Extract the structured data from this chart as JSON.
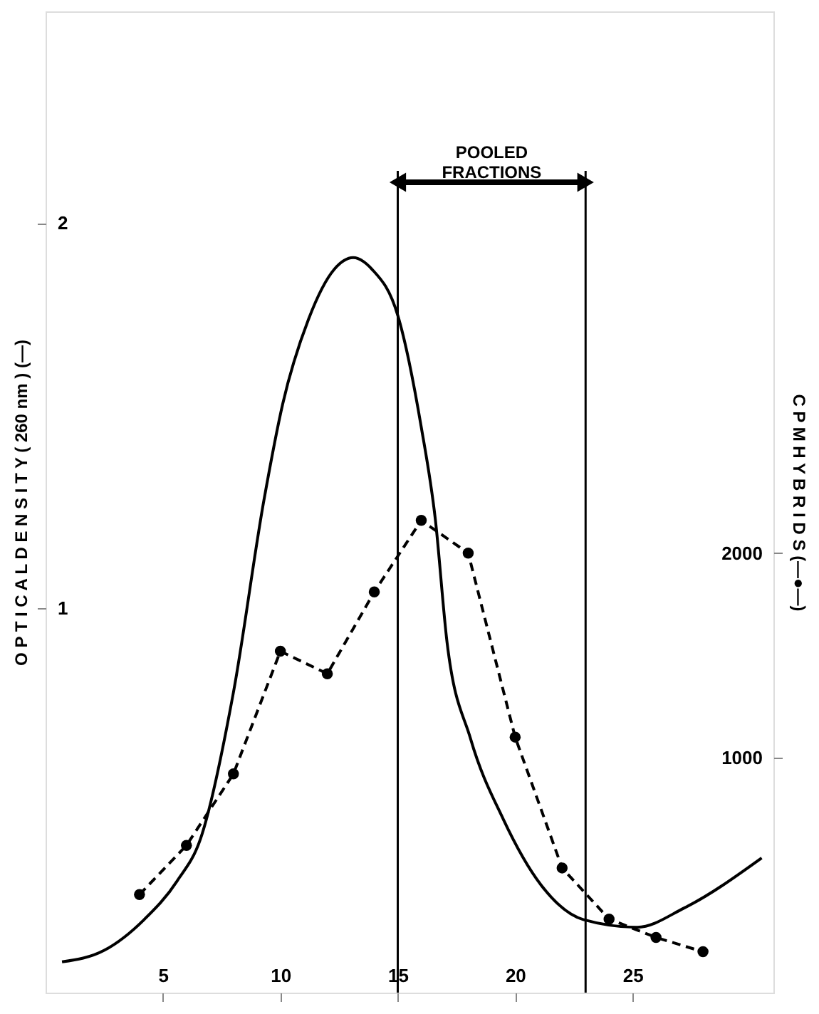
{
  "chart_data": {
    "type": "line",
    "ylabel": "O P T I C A L   D E N S I T Y   ( 260 nm )  (—)",
    "y2label": "C P M   H Y B R I D S   (—●—)",
    "xlim": [
      0,
      31
    ],
    "xticks": [
      5,
      10,
      15,
      20,
      25
    ],
    "ylim": [
      0,
      2.55
    ],
    "yticks": [
      1,
      2
    ],
    "y2lim": [
      -150,
      4650
    ],
    "y2ticks": [
      1000,
      2000
    ],
    "series": [
      {
        "color": "#000000",
        "marker": "none",
        "line_style": "solid",
        "x": [
          0.7,
          2.5,
          4.2,
          5.6,
          6.6,
          8.0,
          9.3,
          10.1,
          11.2,
          12.3,
          13.1,
          13.9,
          15.0,
          16.0,
          16.6,
          17.1,
          18.1,
          19.5,
          21.1,
          22.9,
          25.2,
          27.2,
          30.5
        ],
        "values": [
          0.08,
          0.11,
          0.19,
          0.29,
          0.4,
          0.78,
          1.28,
          1.53,
          1.75,
          1.88,
          1.91,
          1.88,
          1.76,
          1.47,
          1.23,
          0.91,
          0.66,
          0.45,
          0.28,
          0.19,
          0.17,
          0.22,
          0.35
        ]
      },
      {
        "axis": "y2",
        "color": "#000000",
        "marker": "circle",
        "line_style": "dashed",
        "x": [
          4,
          6,
          8,
          10,
          12,
          14,
          16,
          18,
          20,
          22,
          24,
          26,
          28
        ],
        "values": [
          330,
          570,
          920,
          1520,
          1410,
          1810,
          2160,
          2000,
          1100,
          460,
          210,
          120,
          50
        ]
      }
    ],
    "ref_lines": [
      {
        "axis": "x",
        "value": 15
      },
      {
        "axis": "x",
        "value": 23
      }
    ],
    "annotations": [
      "POOLED FRACTIONS"
    ],
    "grid": false
  }
}
